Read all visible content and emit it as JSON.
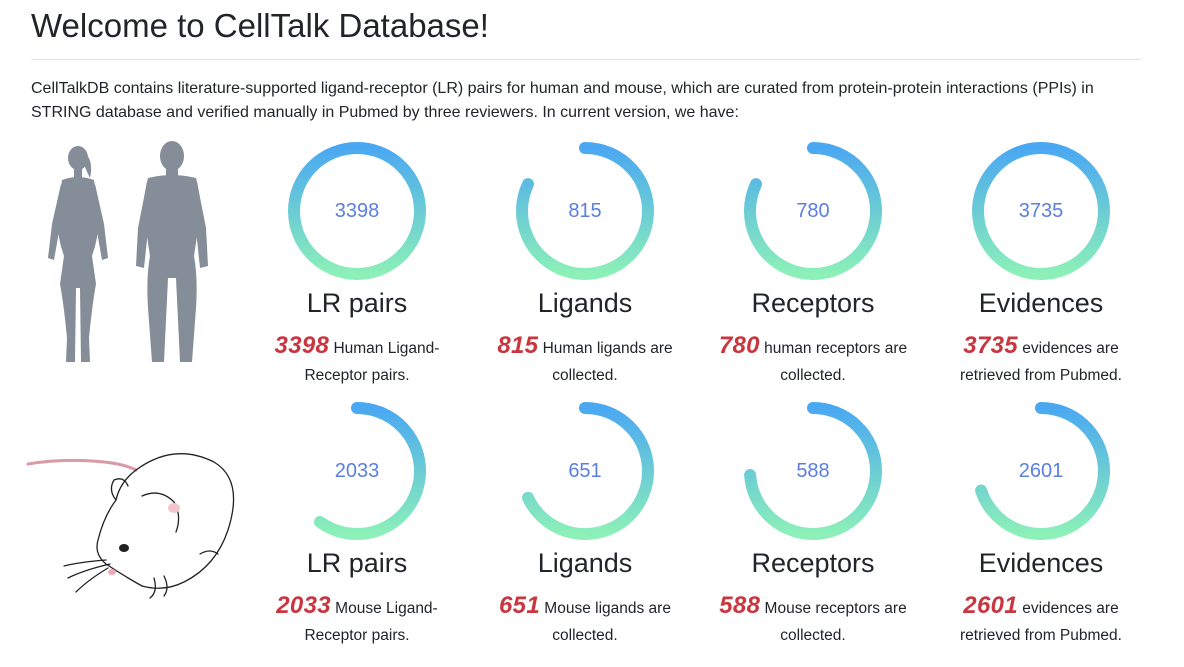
{
  "page": {
    "title": "Welcome to CellTalk Database!",
    "intro": "CellTalkDB contains literature-supported ligand-receptor (LR) pairs for human and mouse, which are curated from protein-protein interactions (PPIs) in STRING database and verified manually in Pubmed by three reviewers. In current version, we have:"
  },
  "colors": {
    "ring_top": "#4aa8f2",
    "ring_bottom": "#8cf0b8",
    "value_text": "#5b7fe0",
    "number_accent": "#c9363f",
    "silhouette": "#858d98"
  },
  "human": {
    "stats": [
      {
        "value": "3398",
        "fraction": 1.0,
        "label": "LR pairs",
        "number": "3398",
        "text": " Human Ligand-Receptor pairs."
      },
      {
        "value": "815",
        "fraction": 0.82,
        "label": "Ligands",
        "number": "815",
        "text": " Human ligands are collected."
      },
      {
        "value": "780",
        "fraction": 0.82,
        "label": "Receptors",
        "number": "780",
        "text": " human receptors are collected."
      },
      {
        "value": "3735",
        "fraction": 1.0,
        "label": "Evidences",
        "number": "3735",
        "text": " evidences are retrieved from Pubmed."
      }
    ]
  },
  "mouse": {
    "stats": [
      {
        "value": "2033",
        "fraction": 0.6,
        "label": "LR pairs",
        "number": "2033",
        "text": " Mouse Ligand-Receptor pairs."
      },
      {
        "value": "651",
        "fraction": 0.68,
        "label": "Ligands",
        "number": "651",
        "text": " Mouse ligands are collected."
      },
      {
        "value": "588",
        "fraction": 0.74,
        "label": "Receptors",
        "number": "588",
        "text": " Mouse receptors are collected."
      },
      {
        "value": "2601",
        "fraction": 0.7,
        "label": "Evidences",
        "number": "2601",
        "text": " evidences are retrieved from Pubmed."
      }
    ]
  }
}
